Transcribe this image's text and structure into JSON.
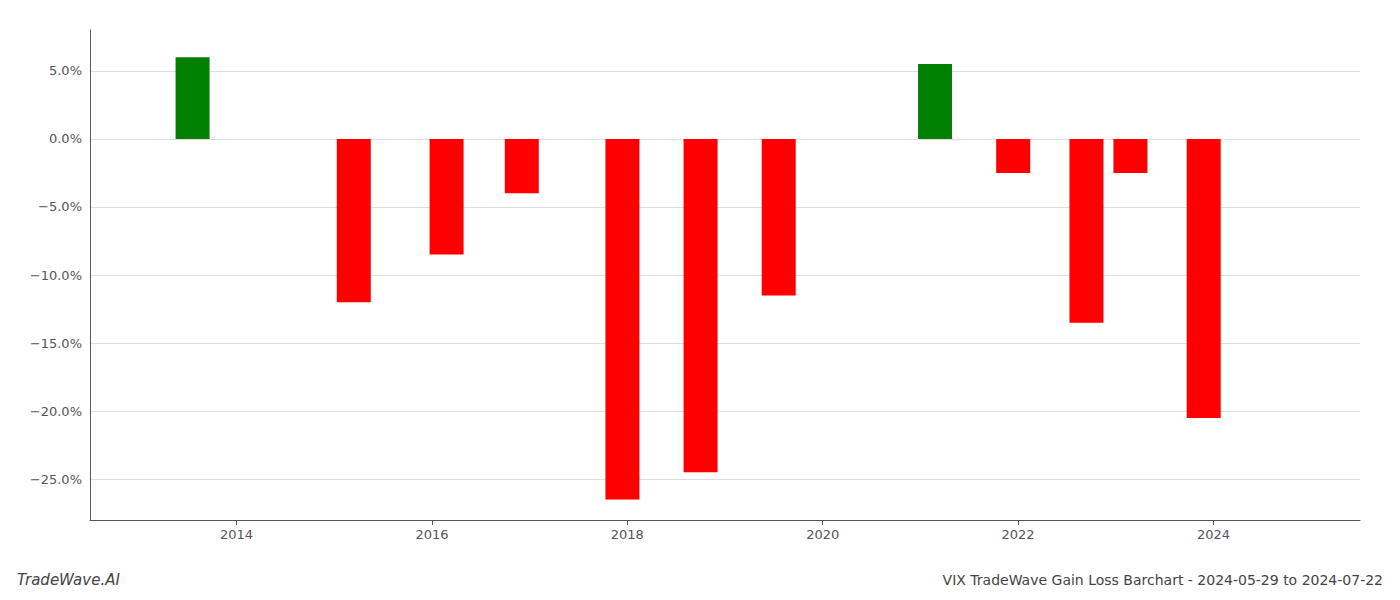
{
  "chart_data": {
    "type": "bar",
    "title": "VIX TradeWave Gain Loss Barchart - 2024-05-29 to 2024-07-22",
    "annotations": [
      "TradeWave.AI"
    ],
    "x": [
      2013.55,
      2015.2,
      2016.15,
      2016.92,
      2017.95,
      2018.75,
      2019.55,
      2021.15,
      2021.95,
      2022.7,
      2023.15,
      2023.9
    ],
    "values": [
      6.0,
      -12.0,
      -8.5,
      -4.0,
      -26.5,
      -24.5,
      -11.5,
      5.5,
      -2.5,
      -13.5,
      -2.5,
      -20.5
    ],
    "colors": [
      "#008000",
      "#ff0000",
      "#ff0000",
      "#ff0000",
      "#ff0000",
      "#ff0000",
      "#ff0000",
      "#008000",
      "#ff0000",
      "#ff0000",
      "#ff0000",
      "#ff0000"
    ],
    "xlim": [
      2012.5,
      2025.5
    ],
    "xticks": [
      2014,
      2016,
      2018,
      2020,
      2022,
      2024
    ],
    "ylim": [
      -28,
      8
    ],
    "yticks": [
      {
        "value": 5.0,
        "label": "5.0%"
      },
      {
        "value": 0.0,
        "label": "0.0%"
      },
      {
        "value": -5.0,
        "label": "−5.0%"
      },
      {
        "value": -10.0,
        "label": "−10.0%"
      },
      {
        "value": -15.0,
        "label": "−15.0%"
      },
      {
        "value": -20.0,
        "label": "−20.0%"
      },
      {
        "value": -25.0,
        "label": "−25.0%"
      }
    ],
    "grid": true
  }
}
